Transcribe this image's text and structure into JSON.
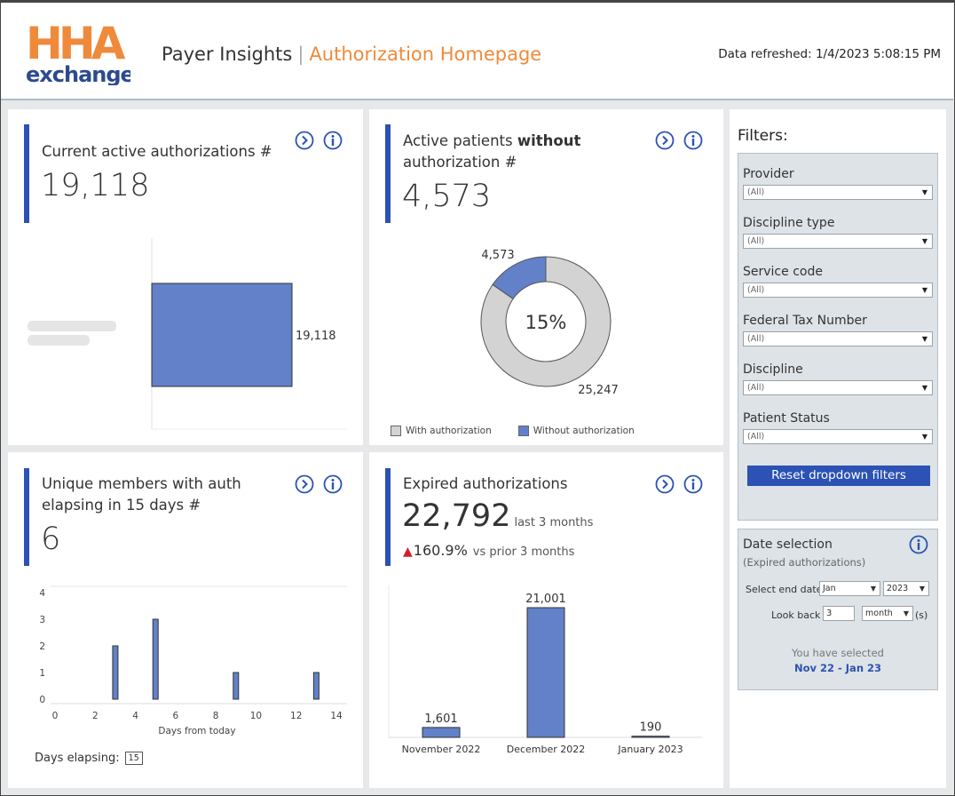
{
  "header": {
    "logo_top": "HHA",
    "logo_bottom": "exchange",
    "app_name": "Payer Insights",
    "separator": "|",
    "page_title": "Authorization Homepage",
    "refreshed": "Data refreshed: 1/4/2023 5:08:15 PM"
  },
  "panels": {
    "active_auth": {
      "title": "Current active authorizations #",
      "value": "19,118",
      "chart_data": {
        "type": "bar",
        "orientation": "horizontal",
        "categories": [
          "(blurred)"
        ],
        "values": [
          19118
        ],
        "data_labels": [
          "19,118"
        ]
      }
    },
    "without_auth": {
      "title_prefix": "Active patients ",
      "title_bold": "without",
      "title_suffix": "authorization #",
      "value": "4,573",
      "chart_data": {
        "type": "pie",
        "categories": [
          "With authorization",
          "Without authorization"
        ],
        "values": [
          25247,
          4573
        ],
        "data_labels": [
          "25,247",
          "4,573"
        ],
        "center_label": "15%",
        "colors": [
          "#d3d3d3",
          "#6281c9"
        ]
      }
    },
    "unique_members": {
      "title_line1": "Unique members with auth",
      "title_line2": "elapsing in 15 days #",
      "value": "6",
      "days_label": "Days elapsing:",
      "days_value": "15",
      "chart_data": {
        "type": "bar",
        "xlabel": "Days from today",
        "x": [
          3,
          5,
          9,
          13
        ],
        "values": [
          2,
          3,
          1,
          1
        ],
        "xticks": [
          "0",
          "2",
          "4",
          "6",
          "8",
          "10",
          "12",
          "14"
        ],
        "yticks": [
          "0",
          "1",
          "2",
          "3",
          "4"
        ],
        "xlim": [
          0,
          14
        ],
        "ylim": [
          0,
          4
        ]
      }
    },
    "expired": {
      "title": "Expired authorizations",
      "value": "22,792",
      "value_suffix": "last 3 months",
      "change": "160.9%",
      "change_suffix": "vs prior 3 months",
      "chart_data": {
        "type": "bar",
        "categories": [
          "November 2022",
          "December 2022",
          "January 2023"
        ],
        "values": [
          1601,
          21001,
          190
        ],
        "data_labels": [
          "1,601",
          "21,001",
          "190"
        ]
      }
    }
  },
  "filters": {
    "title": "Filters:",
    "items": [
      {
        "label": "Provider",
        "value": "(All)"
      },
      {
        "label": "Discipline type",
        "value": "(All)"
      },
      {
        "label": "Service code",
        "value": "(All)"
      },
      {
        "label": "Federal Tax Number",
        "value": "(All)"
      },
      {
        "label": "Discipline",
        "value": "(All)"
      },
      {
        "label": "Patient Status",
        "value": "(All)"
      }
    ],
    "reset_label": "Reset dropdown filters"
  },
  "date_selection": {
    "title": "Date selection",
    "subtitle": "(Expired authorizations)",
    "end_date_label": "Select end date",
    "month": "Jan",
    "year": "2023",
    "lookback_label": "Look back",
    "lookback_value": "3",
    "unit": "month",
    "unit_suffix": "(s)",
    "selected_label": "You have selected",
    "selected_value": "Nov 22 - Jan 23"
  },
  "colors": {
    "accent": "#2b52b4",
    "orange": "#ef8a3b",
    "bar": "#6281c9",
    "up_arrow": "#d0202e"
  }
}
